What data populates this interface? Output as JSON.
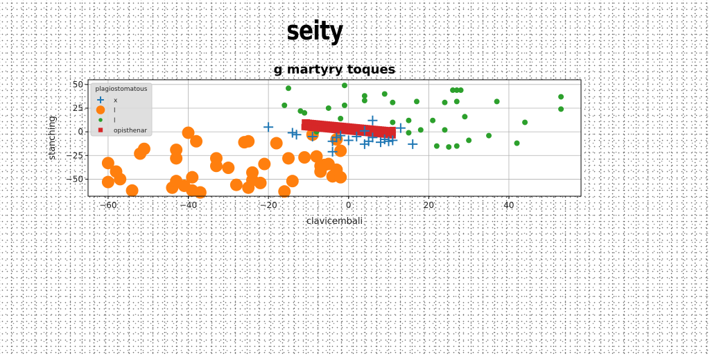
{
  "figure": {
    "suptitle": "seity"
  },
  "chart_data": {
    "type": "scatter",
    "title": "g martyry toques",
    "xlabel": "clavicembali",
    "ylabel": "stanching",
    "xlim": [
      -65,
      58
    ],
    "ylim": [
      -68,
      55
    ],
    "xticks": [
      -60,
      -40,
      -20,
      0,
      20,
      40
    ],
    "yticks": [
      -50,
      -25,
      0,
      25,
      50
    ],
    "grid": true,
    "legend": {
      "title": "plagiostomatous",
      "placement": "top-left"
    },
    "series": [
      {
        "name": "x",
        "marker": "plus",
        "color": "#1f77b4",
        "points": [
          [
            -20,
            5
          ],
          [
            -14,
            -1
          ],
          [
            -13,
            -3
          ],
          [
            -9,
            -5
          ],
          [
            -4,
            -21
          ],
          [
            -4,
            -10
          ],
          [
            -3,
            -6
          ],
          [
            -2,
            -4
          ],
          [
            0,
            -9
          ],
          [
            2,
            -5
          ],
          [
            4,
            -13
          ],
          [
            5,
            -10
          ],
          [
            6,
            -6
          ],
          [
            6,
            12
          ],
          [
            8,
            -11
          ],
          [
            9,
            -8
          ],
          [
            10,
            -10
          ],
          [
            11,
            -9
          ],
          [
            13,
            4
          ],
          [
            16,
            -13
          ],
          [
            4,
            1
          ]
        ]
      },
      {
        "name": "l",
        "marker": "circle-large",
        "color": "#ff7f0e",
        "points": [
          [
            -60,
            -33
          ],
          [
            -60,
            -53
          ],
          [
            -58,
            -42
          ],
          [
            -57,
            -50
          ],
          [
            -54,
            -62
          ],
          [
            -52,
            -23
          ],
          [
            -51,
            -18
          ],
          [
            -44,
            -59
          ],
          [
            -43,
            -52
          ],
          [
            -43,
            -19
          ],
          [
            -43,
            -28
          ],
          [
            -41,
            -57
          ],
          [
            -40,
            -1
          ],
          [
            -39,
            -48
          ],
          [
            -39,
            -62
          ],
          [
            -38,
            -10
          ],
          [
            -37,
            -64
          ],
          [
            -33,
            -36
          ],
          [
            -33,
            -28
          ],
          [
            -30,
            -38
          ],
          [
            -28,
            -56
          ],
          [
            -26,
            -11
          ],
          [
            -25,
            -10
          ],
          [
            -25,
            -59
          ],
          [
            -24,
            -43
          ],
          [
            -24,
            -51
          ],
          [
            -22,
            -54
          ],
          [
            -21,
            -34
          ],
          [
            -18,
            -12
          ],
          [
            -16,
            -63
          ],
          [
            -15,
            -28
          ],
          [
            -14,
            -52
          ],
          [
            -11,
            -27
          ],
          [
            -9,
            -3
          ],
          [
            -8,
            -26
          ],
          [
            -7,
            -36
          ],
          [
            -7,
            -42
          ],
          [
            -6,
            -35
          ],
          [
            -5,
            -34
          ],
          [
            -4,
            -47
          ],
          [
            -3,
            -40
          ],
          [
            -3,
            -8
          ],
          [
            -2,
            -20
          ],
          [
            -2,
            -48
          ]
        ]
      },
      {
        "name": "l",
        "marker": "circle-small",
        "color": "#2ca02c",
        "points": [
          [
            -15,
            46
          ],
          [
            -16,
            28
          ],
          [
            -12,
            22
          ],
          [
            -11,
            20
          ],
          [
            -8,
            0
          ],
          [
            -5,
            25
          ],
          [
            -2,
            14
          ],
          [
            -1,
            3
          ],
          [
            -1,
            49
          ],
          [
            -1,
            28
          ],
          [
            4,
            38
          ],
          [
            4,
            33
          ],
          [
            9,
            40
          ],
          [
            11,
            31
          ],
          [
            11,
            10
          ],
          [
            15,
            12
          ],
          [
            15,
            -1
          ],
          [
            17,
            32
          ],
          [
            18,
            2
          ],
          [
            21,
            12
          ],
          [
            24,
            2
          ],
          [
            24,
            31
          ],
          [
            26,
            44
          ],
          [
            27,
            32
          ],
          [
            27,
            44
          ],
          [
            28,
            44
          ],
          [
            29,
            16
          ],
          [
            30,
            -9
          ],
          [
            22,
            -15
          ],
          [
            25,
            -16
          ],
          [
            27,
            -15
          ],
          [
            35,
            -4
          ],
          [
            37,
            32
          ],
          [
            42,
            -12
          ],
          [
            44,
            10
          ],
          [
            53,
            37
          ],
          [
            53,
            24
          ]
        ]
      },
      {
        "name": "opisthenar",
        "marker": "square",
        "color": "#d62728",
        "points": [
          [
            -10.9,
            10
          ],
          [
            -10.4,
            10
          ],
          [
            -9.9,
            9.6
          ],
          [
            -9.4,
            9.4
          ],
          [
            -8.9,
            9.2
          ],
          [
            -8.4,
            9
          ],
          [
            -7.9,
            8.8
          ],
          [
            -7.4,
            8.6
          ],
          [
            -6.9,
            8.4
          ],
          [
            -6.4,
            8.2
          ],
          [
            -5.9,
            8
          ],
          [
            -5.4,
            7.8
          ],
          [
            -4.9,
            7.6
          ],
          [
            -4.4,
            7.4
          ],
          [
            -3.9,
            7.2
          ],
          [
            -3.4,
            7
          ],
          [
            -2.9,
            6.8
          ],
          [
            -2.4,
            6.6
          ],
          [
            -1.9,
            6.4
          ],
          [
            -1.4,
            6.2
          ],
          [
            -0.9,
            6
          ],
          [
            -0.4,
            5.8
          ],
          [
            0.1,
            5.6
          ],
          [
            0.6,
            5.4
          ],
          [
            1.1,
            5.2
          ],
          [
            1.6,
            5
          ],
          [
            2.1,
            4.8
          ],
          [
            2.6,
            4.6
          ],
          [
            3.1,
            4.4
          ],
          [
            3.6,
            4.2
          ],
          [
            4.1,
            4
          ],
          [
            4.6,
            3.8
          ],
          [
            5.1,
            3.6
          ],
          [
            5.6,
            3.4
          ],
          [
            6.1,
            3.2
          ],
          [
            6.6,
            3
          ],
          [
            7.1,
            2.8
          ],
          [
            7.6,
            2.6
          ],
          [
            8.1,
            2.4
          ],
          [
            8.6,
            2.2
          ],
          [
            9.1,
            2
          ],
          [
            9.6,
            1.8
          ],
          [
            10.1,
            1.6
          ],
          [
            10.6,
            1.4
          ],
          [
            -11,
            5
          ],
          [
            -10.5,
            4.8
          ],
          [
            -10,
            4.6
          ],
          [
            -9.5,
            4.4
          ],
          [
            -9,
            4.2
          ],
          [
            -8.5,
            4
          ],
          [
            -8,
            3.8
          ],
          [
            -7.5,
            3.6
          ],
          [
            -7,
            3.4
          ],
          [
            -6.5,
            3.2
          ],
          [
            -6,
            3
          ],
          [
            -5.5,
            2.8
          ],
          [
            -5,
            2.6
          ],
          [
            -4.5,
            2.4
          ],
          [
            -4,
            2.2
          ],
          [
            -3.5,
            2
          ],
          [
            -3,
            1.8
          ],
          [
            -2.5,
            1.6
          ],
          [
            -2,
            1.4
          ],
          [
            -1.5,
            1.2
          ],
          [
            -1,
            1
          ],
          [
            -0.5,
            0.8
          ],
          [
            0,
            0.6
          ],
          [
            0.5,
            0.4
          ],
          [
            1,
            0.2
          ],
          [
            1.5,
            0
          ],
          [
            2,
            -0.2
          ],
          [
            2.5,
            -0.4
          ],
          [
            3,
            -0.6
          ],
          [
            3.5,
            -0.8
          ],
          [
            4,
            -1
          ],
          [
            4.5,
            -1.2
          ],
          [
            5,
            -1.4
          ],
          [
            5.5,
            -1.6
          ],
          [
            6,
            -1.8
          ],
          [
            6.5,
            -2
          ],
          [
            7,
            -2.2
          ],
          [
            7.5,
            -2.4
          ],
          [
            8,
            -2.6
          ],
          [
            8.5,
            -2.8
          ],
          [
            9,
            -3
          ],
          [
            9.5,
            -3.2
          ],
          [
            10,
            -3.4
          ],
          [
            10.5,
            -3.6
          ],
          [
            11,
            -3.8
          ],
          [
            11,
            2
          ],
          [
            11,
            -1
          ]
        ]
      }
    ]
  }
}
